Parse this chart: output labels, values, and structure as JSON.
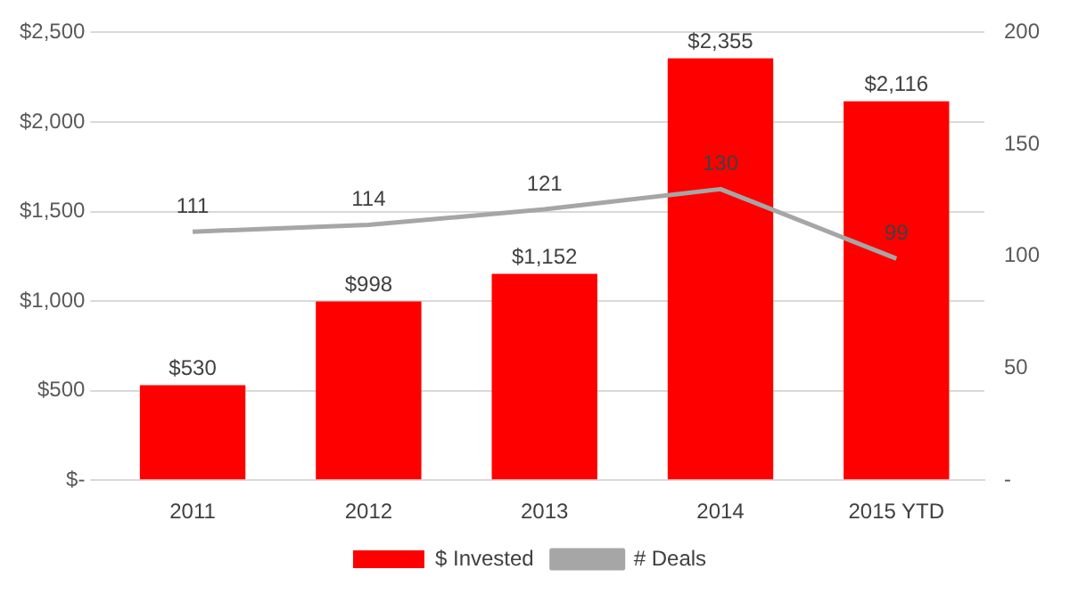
{
  "chart_data": {
    "type": "bar",
    "categories": [
      "2011",
      "2012",
      "2013",
      "2014",
      "2015 YTD"
    ],
    "series": [
      {
        "name": "$ Invested",
        "color": "#ff0000",
        "values": [
          530,
          998,
          1152,
          2355,
          2116
        ],
        "value_labels": [
          "$530",
          "$998",
          "$1,152",
          "$2,355",
          "$2,116"
        ]
      },
      {
        "name": "# Deals",
        "type": "line",
        "axis": "y2",
        "color": "#a6a6a6",
        "values": [
          111,
          114,
          121,
          130,
          99
        ],
        "value_labels": [
          "111",
          "114",
          "121",
          "130",
          "99"
        ]
      }
    ],
    "ylim": [
      0,
      2500
    ],
    "yticks": [
      {
        "value": 0,
        "label": "$-"
      },
      {
        "value": 500,
        "label": "$500"
      },
      {
        "value": 1000,
        "label": "$1,000"
      },
      {
        "value": 1500,
        "label": "$1,500"
      },
      {
        "value": 2000,
        "label": "$2,000"
      },
      {
        "value": 2500,
        "label": "$2,500"
      }
    ],
    "y2lim": [
      0,
      200
    ],
    "y2ticks": [
      {
        "value": 0,
        "label": "-"
      },
      50,
      100,
      150,
      200
    ],
    "grid": "y",
    "legend": "bottom",
    "marker": "none"
  }
}
